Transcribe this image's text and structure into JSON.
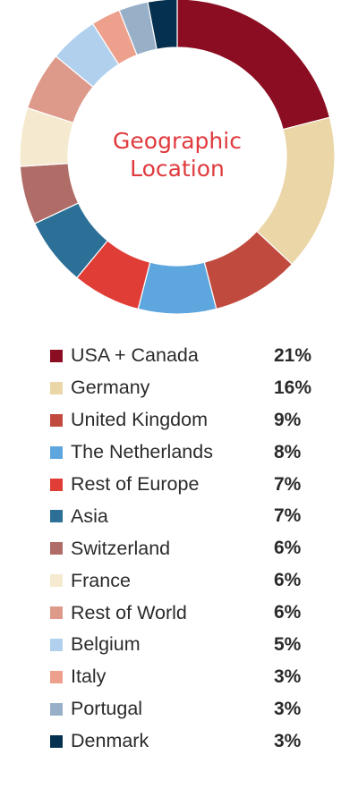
{
  "chart_data": {
    "type": "pie",
    "variant": "donut",
    "title": "Geographic Location",
    "title_lines": [
      "Geographic",
      "Location"
    ],
    "value_suffix": "%",
    "slices": [
      {
        "label": "USA + Canada",
        "value": 21,
        "color": "#8b0d21"
      },
      {
        "label": "Germany",
        "value": 16,
        "color": "#ead6a6"
      },
      {
        "label": "United Kingdom",
        "value": 9,
        "color": "#c14a3e"
      },
      {
        "label": "The Netherlands",
        "value": 8,
        "color": "#5ea6de"
      },
      {
        "label": "Rest of Europe",
        "value": 7,
        "color": "#e13d37"
      },
      {
        "label": "Asia",
        "value": 7,
        "color": "#2c7097"
      },
      {
        "label": "Switzerland",
        "value": 6,
        "color": "#b06c66"
      },
      {
        "label": "France",
        "value": 6,
        "color": "#f5ead0"
      },
      {
        "label": "Rest of World",
        "value": 6,
        "color": "#dd9a8a"
      },
      {
        "label": "Belgium",
        "value": 5,
        "color": "#b1d0ee"
      },
      {
        "label": "Italy",
        "value": 3,
        "color": "#eda08c"
      },
      {
        "label": "Portugal",
        "value": 3,
        "color": "#97b0c8"
      },
      {
        "label": "Denmark",
        "value": 3,
        "color": "#05304f"
      }
    ],
    "legend_placement": "bottom",
    "start_angle_deg": 0,
    "direction": "clockwise"
  },
  "colors": {
    "title": "#e03a3e",
    "text": "#2b2b2b",
    "background": "#ffffff"
  }
}
